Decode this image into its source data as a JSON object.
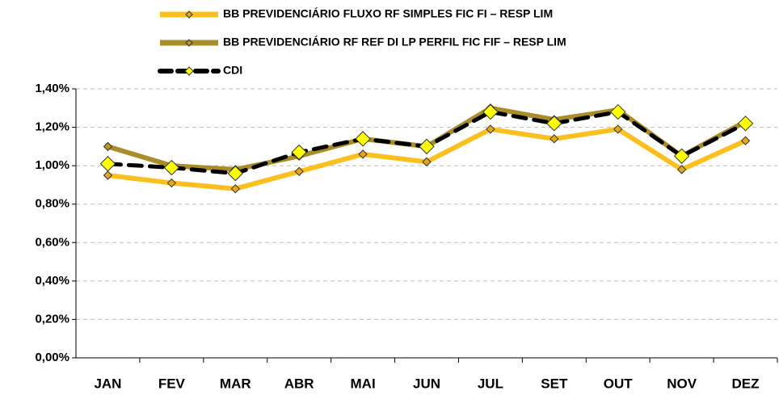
{
  "chart_data": {
    "type": "line",
    "categories": [
      "JAN",
      "FEV",
      "MAR",
      "ABR",
      "MAI",
      "JUN",
      "JUL",
      "SET",
      "OUT",
      "NOV",
      "DEZ"
    ],
    "series": [
      {
        "name": "BB PREVIDENCIÁRIO FLUXO RF SIMPLES FIC FI – RESP LIM",
        "color": "#fbbf1e",
        "marker_color": "#e0a81c",
        "values": [
          0.95,
          0.91,
          0.88,
          0.97,
          1.06,
          1.02,
          1.19,
          1.14,
          1.19,
          0.98,
          1.13
        ]
      },
      {
        "name": "BB PREVIDENCIÁRIO RF REF DI LP PERFIL FIC FIF – RESP LIM",
        "color": "#a88d28",
        "marker_color": "#b8962a",
        "values": [
          1.1,
          1.0,
          0.98,
          1.05,
          1.14,
          1.1,
          1.3,
          1.24,
          1.29,
          1.05,
          1.23
        ]
      },
      {
        "name": "CDI",
        "color": "#000000",
        "marker_color": "#ffff00",
        "values": [
          1.01,
          0.99,
          0.96,
          1.07,
          1.14,
          1.1,
          1.28,
          1.22,
          1.28,
          1.05,
          1.22
        ]
      }
    ],
    "ylim": [
      0,
      1.4
    ],
    "yticks": [
      {
        "value": 0,
        "label": "0,00%"
      },
      {
        "value": 0.2,
        "label": "0,20%"
      },
      {
        "value": 0.4,
        "label": "0,40%"
      },
      {
        "value": 0.6,
        "label": "0,60%"
      },
      {
        "value": 0.8,
        "label": "0,80%"
      },
      {
        "value": 1.0,
        "label": "1,00%"
      },
      {
        "value": 1.2,
        "label": "1,20%"
      },
      {
        "value": 1.4,
        "label": "1,40%"
      }
    ],
    "grid": true
  }
}
